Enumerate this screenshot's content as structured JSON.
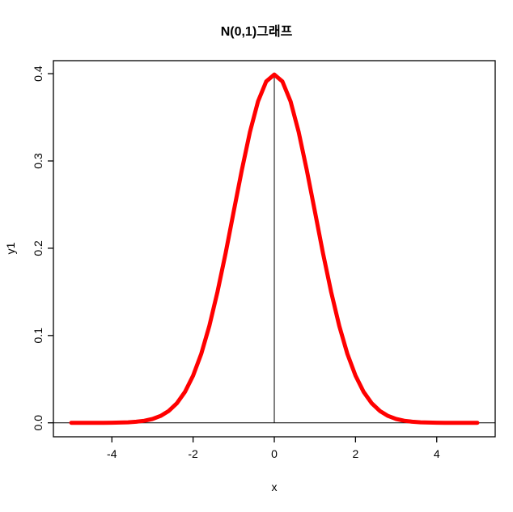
{
  "chart_data": {
    "type": "line",
    "title": "N(0,1)그래프",
    "xlabel": "x",
    "ylabel": "y1",
    "xlim": [
      -5.44,
      5.44
    ],
    "ylim": [
      -0.016,
      0.4149
    ],
    "grid": false,
    "x_ticks": [
      -4,
      -2,
      0,
      2,
      4
    ],
    "x_tick_labels": [
      "-4",
      "-2",
      "0",
      "2",
      "4"
    ],
    "y_ticks": [
      0,
      0.1,
      0.2,
      0.3,
      0.4
    ],
    "y_tick_labels": [
      "0.0",
      "0.1",
      "0.2",
      "0.3",
      "0.4"
    ],
    "reference_lines": {
      "horizontal": {
        "y": 0
      },
      "vertical": {
        "x": 0,
        "y_from": 0,
        "y_to": 0.3989423
      }
    },
    "series": [
      {
        "name": "standard-normal-density",
        "color": "#FF0000",
        "line_width": 5,
        "x": [
          -5,
          -4.8,
          -4.6,
          -4.4,
          -4.2,
          -4,
          -3.8,
          -3.6,
          -3.4,
          -3.2,
          -3,
          -2.8,
          -2.6,
          -2.4,
          -2.2,
          -2,
          -1.8,
          -1.6,
          -1.4,
          -1.2,
          -1,
          -0.8,
          -0.6,
          -0.4,
          -0.2,
          0,
          0.2,
          0.4,
          0.6,
          0.8,
          1,
          1.2,
          1.4,
          1.6,
          1.8,
          2,
          2.2,
          2.4,
          2.6,
          2.8,
          3,
          3.2,
          3.4,
          3.6,
          3.8,
          4,
          4.2,
          4.4,
          4.6,
          4.8,
          5
        ],
        "y": [
          1.5e-06,
          4e-06,
          1.01e-05,
          2.49e-05,
          5.89e-05,
          0.0001338,
          0.0002919,
          0.0006119,
          0.0012322,
          0.0023841,
          0.0044318,
          0.0079155,
          0.013583,
          0.0223945,
          0.0354746,
          0.053991,
          0.0789502,
          0.1109208,
          0.1497275,
          0.1941861,
          0.2419707,
          0.2896916,
          0.3332246,
          0.3682701,
          0.3910427,
          0.3989423,
          0.3910427,
          0.3682701,
          0.3332246,
          0.2896916,
          0.2419707,
          0.1941861,
          0.1497275,
          0.1109208,
          0.0789502,
          0.053991,
          0.0354746,
          0.0223945,
          0.013583,
          0.0079155,
          0.0044318,
          0.0023841,
          0.0012322,
          0.0006119,
          0.0002919,
          0.0001338,
          5.89e-05,
          2.49e-05,
          1.01e-05,
          4e-06,
          1.5e-06
        ]
      }
    ]
  }
}
